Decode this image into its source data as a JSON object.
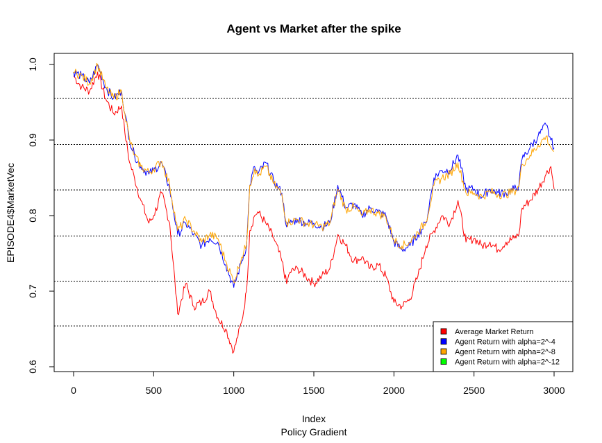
{
  "chart_data": {
    "type": "line",
    "title": "Agent vs Market after the spike",
    "xlabel": "Index",
    "xsublabel": "Policy Gradient",
    "ylabel": "EPISODE4$MarketVec",
    "xlim": [
      0,
      3000
    ],
    "ylim": [
      0.6,
      1.0
    ],
    "xticks": [
      0,
      500,
      1000,
      1500,
      2000,
      2500,
      3000
    ],
    "yticks": [
      0.6,
      0.7,
      0.8,
      0.9,
      1.0
    ],
    "ytick_labels": [
      "0.6",
      "0.7",
      "0.8",
      "0.9",
      "1.0"
    ],
    "hlines": [
      0.654,
      0.713,
      0.773,
      0.834,
      0.894,
      0.955
    ],
    "hline_style": "dotted",
    "legend_position": "bottom-right",
    "series": [
      {
        "name": "Average Market Return",
        "color": "#ff0000",
        "x": [
          0,
          50,
          100,
          150,
          200,
          250,
          300,
          320,
          350,
          380,
          420,
          470,
          500,
          550,
          600,
          650,
          700,
          750,
          800,
          850,
          900,
          950,
          1000,
          1050,
          1080,
          1100,
          1130,
          1150,
          1200,
          1250,
          1300,
          1330,
          1350,
          1400,
          1450,
          1500,
          1550,
          1600,
          1650,
          1700,
          1750,
          1800,
          1850,
          1900,
          1950,
          2000,
          2050,
          2100,
          2150,
          2200,
          2250,
          2300,
          2350,
          2400,
          2450,
          2500,
          2550,
          2600,
          2650,
          2700,
          2750,
          2780,
          2800,
          2850,
          2900,
          2950,
          2980,
          3000
        ],
        "values": [
          0.985,
          0.97,
          0.965,
          0.99,
          0.955,
          0.935,
          0.945,
          0.91,
          0.87,
          0.85,
          0.82,
          0.79,
          0.8,
          0.83,
          0.79,
          0.67,
          0.71,
          0.68,
          0.685,
          0.7,
          0.665,
          0.65,
          0.62,
          0.66,
          0.7,
          0.78,
          0.8,
          0.805,
          0.79,
          0.77,
          0.74,
          0.71,
          0.725,
          0.73,
          0.72,
          0.71,
          0.72,
          0.73,
          0.775,
          0.76,
          0.74,
          0.745,
          0.73,
          0.735,
          0.72,
          0.685,
          0.68,
          0.69,
          0.72,
          0.76,
          0.78,
          0.8,
          0.79,
          0.82,
          0.765,
          0.77,
          0.76,
          0.765,
          0.755,
          0.765,
          0.77,
          0.775,
          0.81,
          0.82,
          0.835,
          0.855,
          0.865,
          0.835
        ]
      },
      {
        "name": "Agent Return with alpha=2^-4",
        "color": "#0000ff",
        "x": [
          0,
          50,
          100,
          150,
          200,
          250,
          300,
          320,
          350,
          380,
          420,
          470,
          500,
          550,
          600,
          650,
          700,
          750,
          800,
          850,
          900,
          950,
          1000,
          1050,
          1080,
          1100,
          1130,
          1150,
          1200,
          1250,
          1300,
          1330,
          1350,
          1400,
          1450,
          1500,
          1550,
          1600,
          1650,
          1700,
          1750,
          1800,
          1850,
          1900,
          1950,
          2000,
          2050,
          2100,
          2150,
          2200,
          2250,
          2300,
          2350,
          2400,
          2450,
          2500,
          2550,
          2600,
          2650,
          2700,
          2750,
          2780,
          2800,
          2850,
          2900,
          2950,
          2980,
          3000
        ],
        "values": [
          0.99,
          0.985,
          0.975,
          1.0,
          0.97,
          0.955,
          0.965,
          0.935,
          0.9,
          0.88,
          0.865,
          0.855,
          0.86,
          0.87,
          0.835,
          0.775,
          0.79,
          0.775,
          0.76,
          0.77,
          0.765,
          0.735,
          0.705,
          0.74,
          0.76,
          0.84,
          0.865,
          0.855,
          0.87,
          0.845,
          0.83,
          0.785,
          0.79,
          0.795,
          0.79,
          0.79,
          0.785,
          0.79,
          0.84,
          0.81,
          0.815,
          0.8,
          0.81,
          0.805,
          0.8,
          0.765,
          0.755,
          0.76,
          0.775,
          0.79,
          0.85,
          0.86,
          0.86,
          0.88,
          0.835,
          0.835,
          0.825,
          0.835,
          0.83,
          0.83,
          0.835,
          0.84,
          0.875,
          0.89,
          0.905,
          0.92,
          0.9,
          0.89
        ]
      },
      {
        "name": "Agent Return with alpha=2^-8",
        "color": "#ffa500",
        "x": [
          0,
          50,
          100,
          150,
          200,
          250,
          300,
          320,
          350,
          380,
          420,
          470,
          500,
          550,
          600,
          650,
          700,
          750,
          800,
          850,
          900,
          950,
          1000,
          1050,
          1080,
          1100,
          1130,
          1150,
          1200,
          1250,
          1300,
          1330,
          1350,
          1400,
          1450,
          1500,
          1550,
          1600,
          1650,
          1700,
          1750,
          1800,
          1850,
          1900,
          1950,
          2000,
          2050,
          2100,
          2150,
          2200,
          2250,
          2300,
          2350,
          2400,
          2450,
          2500,
          2550,
          2600,
          2650,
          2700,
          2750,
          2780,
          2800,
          2850,
          2900,
          2950,
          2980,
          3000
        ],
        "values": [
          0.99,
          0.985,
          0.975,
          1.0,
          0.97,
          0.955,
          0.965,
          0.935,
          0.9,
          0.88,
          0.865,
          0.857,
          0.862,
          0.872,
          0.84,
          0.78,
          0.795,
          0.78,
          0.765,
          0.775,
          0.77,
          0.74,
          0.712,
          0.745,
          0.762,
          0.84,
          0.862,
          0.852,
          0.865,
          0.842,
          0.828,
          0.79,
          0.792,
          0.795,
          0.79,
          0.788,
          0.785,
          0.79,
          0.835,
          0.808,
          0.812,
          0.8,
          0.808,
          0.803,
          0.798,
          0.768,
          0.76,
          0.765,
          0.778,
          0.792,
          0.84,
          0.85,
          0.855,
          0.87,
          0.83,
          0.83,
          0.825,
          0.832,
          0.828,
          0.828,
          0.832,
          0.838,
          0.868,
          0.88,
          0.893,
          0.905,
          0.89,
          0.885
        ]
      },
      {
        "name": "Agent Return with alpha=2^-12",
        "color": "#00ff00",
        "x": [],
        "values": []
      }
    ]
  }
}
